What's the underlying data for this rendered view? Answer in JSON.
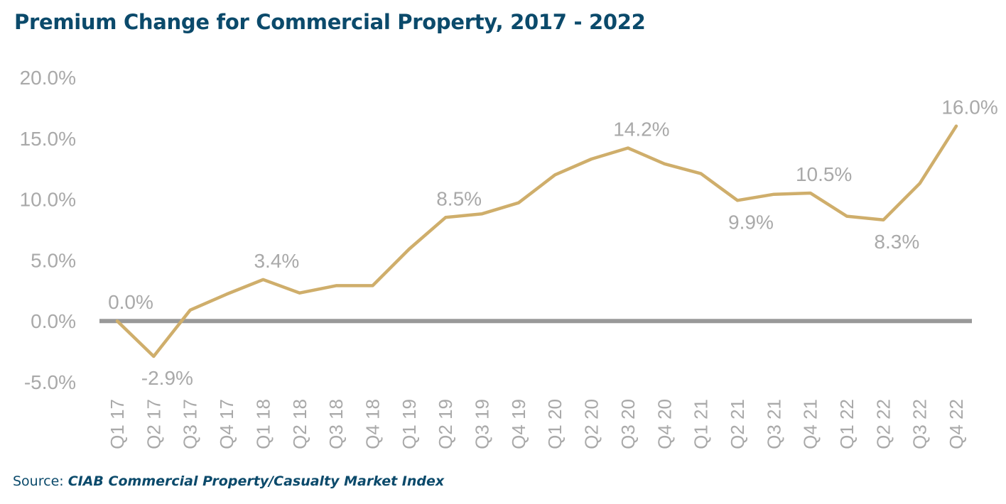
{
  "title": "Premium Change for Commercial Property, 2017 - 2022",
  "source_prefix": "Source: ",
  "source_name": "CIAB Commercial Property/Casualty Market Index",
  "colors": {
    "line": "#cfae6b",
    "zero_line": "#999999",
    "title": "#0b4a6b",
    "text": "#a9a9a9"
  },
  "chart_data": {
    "type": "line",
    "title": "Premium Change for Commercial Property, 2017 - 2022",
    "xlabel": "",
    "ylabel": "",
    "ylim": [
      -5,
      20
    ],
    "yticks": [
      -5,
      0,
      5,
      10,
      15,
      20
    ],
    "ytick_labels": [
      "-5.0%",
      "0.0%",
      "5.0%",
      "10.0%",
      "15.0%",
      "20.0%"
    ],
    "grid": false,
    "legend": "none",
    "categories": [
      "Q1 17",
      "Q2 17",
      "Q3 17",
      "Q4 17",
      "Q1 18",
      "Q2 18",
      "Q3 18",
      "Q4 18",
      "Q1 19",
      "Q2 19",
      "Q3 19",
      "Q4 19",
      "Q1 20",
      "Q2 20",
      "Q3 20",
      "Q4 20",
      "Q1 21",
      "Q2 21",
      "Q3 21",
      "Q4 21",
      "Q1 22",
      "Q2 22",
      "Q3 22",
      "Q4 22"
    ],
    "series": [
      {
        "values": [
          0.0,
          -2.9,
          0.9,
          2.2,
          3.4,
          2.3,
          2.9,
          2.9,
          5.9,
          8.5,
          8.8,
          9.7,
          12.0,
          13.3,
          14.2,
          12.9,
          12.1,
          9.9,
          10.4,
          10.5,
          8.6,
          8.3,
          11.3,
          16.0
        ]
      }
    ],
    "data_labels": [
      {
        "index": 0,
        "text": "0.0%",
        "pos": "above"
      },
      {
        "index": 1,
        "text": "-2.9%",
        "pos": "below"
      },
      {
        "index": 4,
        "text": "3.4%",
        "pos": "above"
      },
      {
        "index": 9,
        "text": "8.5%",
        "pos": "above"
      },
      {
        "index": 14,
        "text": "14.2%",
        "pos": "above"
      },
      {
        "index": 17,
        "text": "9.9%",
        "pos": "below"
      },
      {
        "index": 19,
        "text": "10.5%",
        "pos": "above"
      },
      {
        "index": 21,
        "text": "8.3%",
        "pos": "below"
      },
      {
        "index": 23,
        "text": "16.0%",
        "pos": "above"
      }
    ]
  }
}
